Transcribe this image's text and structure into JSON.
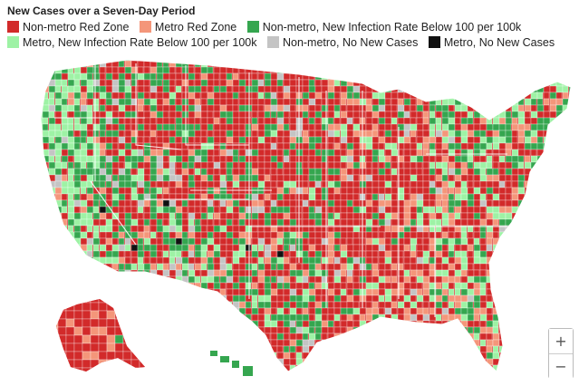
{
  "title": "New Cases over a Seven-Day Period",
  "legend": [
    {
      "key": "nonmetro_red",
      "label": "Non-metro Red Zone",
      "color": "#d22a2a"
    },
    {
      "key": "metro_red",
      "label": "Metro Red Zone",
      "color": "#f4967a"
    },
    {
      "key": "nonmetro_below",
      "label": "Non-metro, New Infection Rate Below 100 per 100k",
      "color": "#35a64f"
    },
    {
      "key": "metro_below",
      "label": "Metro, New Infection Rate Below 100 per 100k",
      "color": "#9ef2a5"
    },
    {
      "key": "nonmetro_none",
      "label": "Non-metro, No New Cases",
      "color": "#c4c4c4"
    },
    {
      "key": "metro_none",
      "label": "Metro, No New Cases",
      "color": "#111111"
    }
  ],
  "zoom": {
    "in_label": "+",
    "out_label": "−"
  }
}
